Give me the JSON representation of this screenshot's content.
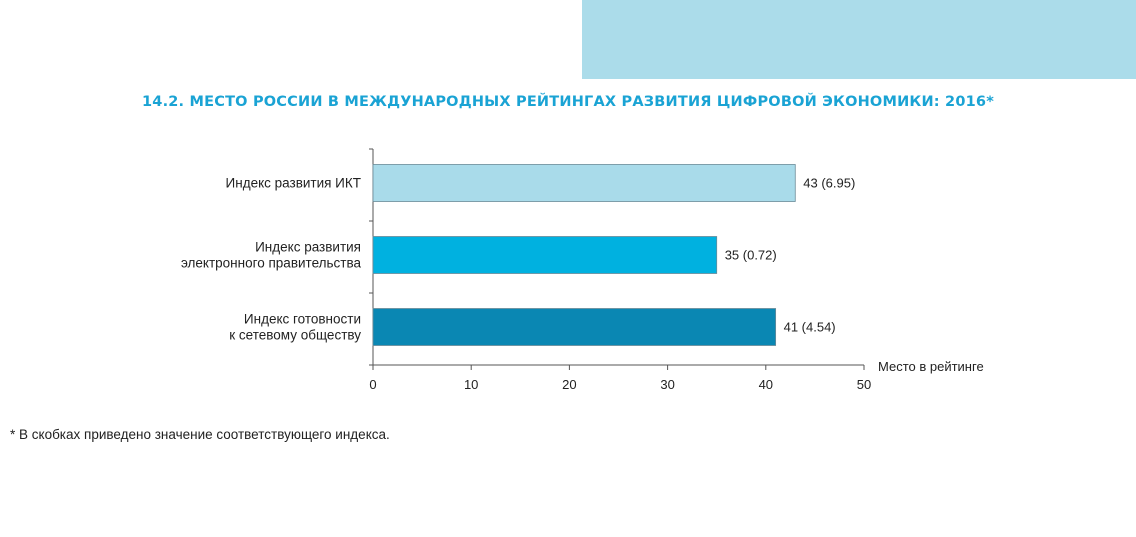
{
  "colors": {
    "header_band": "#abdcea",
    "title": "#1aa3d4",
    "bars": [
      "#a9dbea",
      "#00b1e0",
      "#0a87b3"
    ]
  },
  "chart_data": {
    "type": "bar",
    "orientation": "horizontal",
    "title": "14.2. МЕСТО РОССИИ В МЕЖДУНАРОДНЫХ РЕЙТИНГАХ РАЗВИТИЯ ЦИФРОВОЙ ЭКОНОМИКИ: 2016*",
    "categories": [
      [
        "Индекс развития ИКТ"
      ],
      [
        "Индекс развития",
        "электронного правительства"
      ],
      [
        "Индекс готовности",
        "к сетевому обществу"
      ]
    ],
    "values": [
      43,
      35,
      41
    ],
    "data_labels": [
      "43 (6.95)",
      "35 (0.72)",
      "41 (4.54)"
    ],
    "xlabel": "Место в рейтинге",
    "ylabel": "",
    "xlim": [
      0,
      50
    ],
    "xticks": [
      "0",
      "10",
      "20",
      "30",
      "40",
      "50"
    ],
    "grid": false,
    "legend": "none"
  },
  "footnote": "* В скобках приведено значение соответствующего индекса."
}
